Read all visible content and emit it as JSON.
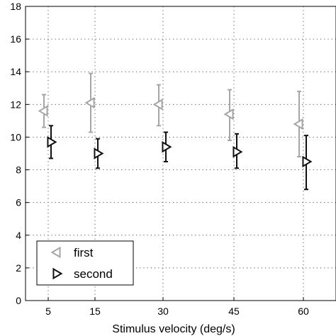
{
  "chart_data": {
    "type": "scatter",
    "title": "",
    "xlabel": "Stimulus velocity (deg/s)",
    "ylabel": "",
    "categories": [
      "5",
      "15",
      "30",
      "45",
      "60"
    ],
    "ylim": [
      0,
      18
    ],
    "yticks": [
      "0",
      "2",
      "4",
      "6",
      "8",
      "10",
      "12",
      "14",
      "16",
      "18"
    ],
    "grid": true,
    "legend_position": "bottom-left",
    "series": [
      {
        "name": "first",
        "marker": "triangle-left",
        "color": "#a6a6a6",
        "values": [
          11.6,
          12.1,
          12.0,
          11.4,
          10.8
        ],
        "err_low": [
          10.6,
          10.3,
          10.7,
          9.8,
          8.8
        ],
        "err_high": [
          12.6,
          13.9,
          13.2,
          12.9,
          12.8
        ]
      },
      {
        "name": "second",
        "marker": "triangle-right",
        "color": "#111111",
        "values": [
          9.7,
          9.0,
          9.4,
          9.1,
          8.5
        ],
        "err_low": [
          8.7,
          8.1,
          8.5,
          8.1,
          6.8
        ],
        "err_high": [
          10.7,
          9.9,
          10.3,
          10.2,
          10.1
        ]
      }
    ]
  }
}
